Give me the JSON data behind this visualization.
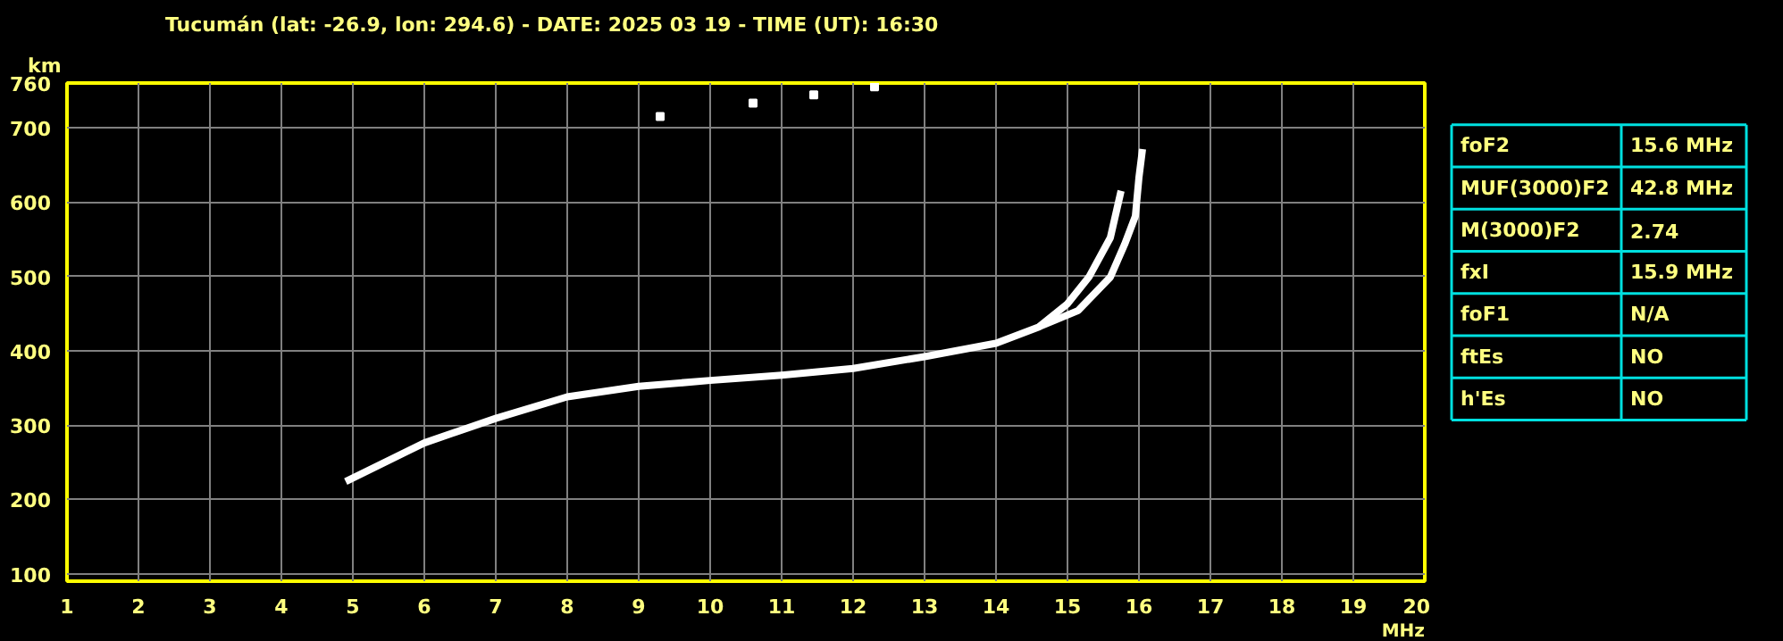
{
  "chart_data": [
    {
      "type": "line",
      "title": "Tucumán (lat: -26.9, lon: 294.6) - DATE: 2025 03 19 - TIME (UT): 16:30",
      "xlabel": "MHz",
      "ylabel": "km",
      "xlim": [
        1,
        20
      ],
      "ylim": [
        90,
        760
      ],
      "xticks": [
        1,
        2,
        3,
        4,
        5,
        6,
        7,
        8,
        9,
        10,
        11,
        12,
        13,
        14,
        15,
        16,
        17,
        18,
        19,
        20
      ],
      "yticks": [
        100,
        200,
        300,
        400,
        500,
        600,
        700,
        760
      ],
      "grid": true,
      "marker": "none",
      "line_style": "solid",
      "series": [
        {
          "color": "#ffffff",
          "x": [
            4.9,
            6.0,
            7.0,
            8.0,
            9.0,
            10.0,
            11.0,
            12.0,
            13.0,
            14.0,
            14.6,
            15.0,
            15.3,
            15.6,
            15.75
          ],
          "values": [
            224,
            276,
            309,
            338,
            352,
            360,
            367,
            376,
            392,
            410,
            432,
            463,
            499,
            552,
            615
          ]
        },
        {
          "color": "#ffffff",
          "x": [
            14.6,
            15.15,
            15.6,
            15.8,
            15.95,
            16.0,
            16.05
          ],
          "values": [
            432,
            454,
            499,
            543,
            581,
            633,
            671
          ]
        },
        {
          "color": "#ffffff",
          "type": "scatter",
          "marker": "square",
          "x": [
            9.3,
            10.6,
            11.45,
            12.3
          ],
          "values": [
            715,
            733,
            744,
            755
          ]
        }
      ]
    },
    {
      "type": "other",
      "annotations": [
        "foF2",
        "15.6 MHz",
        "MUF(3000)F2",
        "42.8 MHz",
        "M(3000)F2",
        "2.74",
        "fxI",
        "15.9 MHz",
        "foF1",
        "N/A",
        "ftEs",
        "NO",
        "h'Es",
        "NO"
      ]
    }
  ]
}
